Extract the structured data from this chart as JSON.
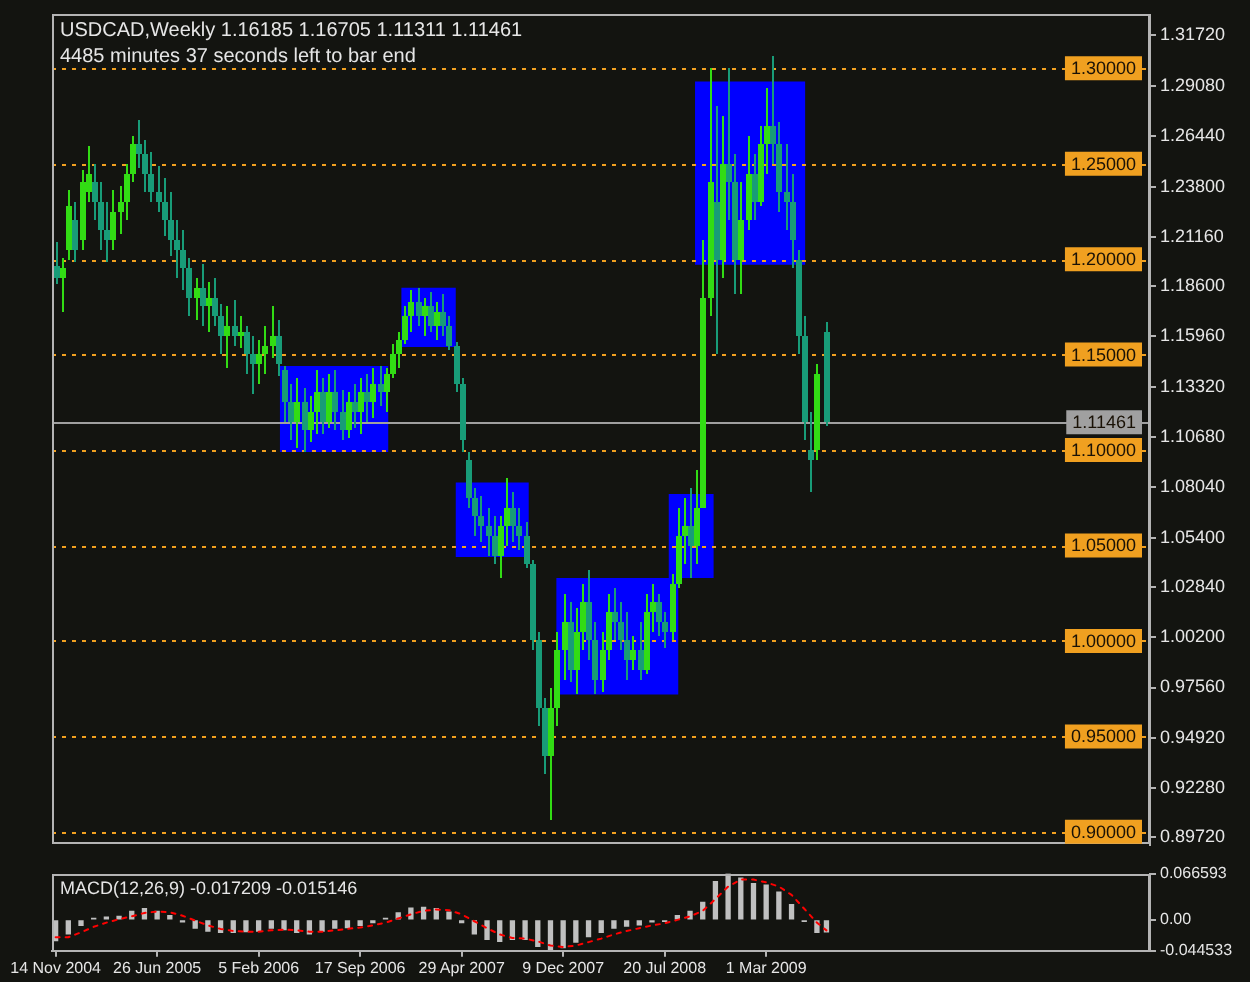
{
  "chart_data": [
    {
      "type": "candlestick",
      "title": "USDCAD,Weekly 1.16185 1.16705 1.11311 1.11461",
      "subtitle": "4485 minutes 37 seconds left to bar end",
      "xlim": [
        "2004-11-06",
        "2011-06-26"
      ],
      "ylim": [
        0.893,
        1.328
      ],
      "tick_labels": "y",
      "yticks": [
        {
          "value": 1.3172,
          "label": "1.31720"
        },
        {
          "value": 1.2908,
          "label": "1.29080"
        },
        {
          "value": 1.2644,
          "label": "1.26440"
        },
        {
          "value": 1.238,
          "label": "1.23800"
        },
        {
          "value": 1.2116,
          "label": "1.21160"
        },
        {
          "value": 1.186,
          "label": "1.18600"
        },
        {
          "value": 1.1596,
          "label": "1.15960"
        },
        {
          "value": 1.1332,
          "label": "1.13320"
        },
        {
          "value": 1.1068,
          "label": "1.10680"
        },
        {
          "value": 1.0804,
          "label": "1.08040"
        },
        {
          "value": 1.054,
          "label": "1.05400"
        },
        {
          "value": 1.0284,
          "label": "1.02840"
        },
        {
          "value": 1.002,
          "label": "1.00200"
        },
        {
          "value": 0.9756,
          "label": "0.97560"
        },
        {
          "value": 0.9492,
          "label": "0.94920"
        },
        {
          "value": 0.9228,
          "label": "0.92280"
        },
        {
          "value": 0.8972,
          "label": "0.89720"
        }
      ],
      "ref_lines": [
        {
          "axis": "y",
          "value": 1.3,
          "label": "1.30000",
          "color": "#f0a020",
          "line_style": "dotted"
        },
        {
          "axis": "y",
          "value": 1.25,
          "label": "1.25000",
          "color": "#f0a020",
          "line_style": "dotted"
        },
        {
          "axis": "y",
          "value": 1.2,
          "label": "1.20000",
          "color": "#f0a020",
          "line_style": "dotted"
        },
        {
          "axis": "y",
          "value": 1.15,
          "label": "1.15000",
          "color": "#f0a020",
          "line_style": "dotted"
        },
        {
          "axis": "y",
          "value": 1.1,
          "label": "1.10000",
          "color": "#f0a020",
          "line_style": "dotted"
        },
        {
          "axis": "y",
          "value": 1.05,
          "label": "1.05000",
          "color": "#f0a020",
          "line_style": "dotted"
        },
        {
          "axis": "y",
          "value": 1.0,
          "label": "1.00000",
          "color": "#f0a020",
          "line_style": "dotted"
        },
        {
          "axis": "y",
          "value": 0.95,
          "label": "0.95000",
          "color": "#f0a020",
          "line_style": "dotted"
        },
        {
          "axis": "y",
          "value": 0.9,
          "label": "0.90000",
          "color": "#f0a020",
          "line_style": "dotted"
        },
        {
          "axis": "y",
          "value": 1.11461,
          "label": "1.11461",
          "color": "#a0a0a0",
          "line_style": "solid"
        }
      ],
      "series": [
        {
          "type": "area",
          "x": [
            "2006-03-24",
            "2006-11-18"
          ],
          "values": [
            null,
            null
          ],
          "upper": [
            1.144,
            1.144
          ],
          "lower": [
            1.099,
            1.099
          ],
          "color": "#0000ff"
        },
        {
          "type": "area",
          "x": [
            "2006-12-17",
            "2007-04-16"
          ],
          "values": [
            null,
            null
          ],
          "upper": [
            1.185,
            1.185
          ],
          "lower": [
            1.154,
            1.154
          ],
          "color": "#0000ff"
        },
        {
          "type": "area",
          "x": [
            "2007-04-16",
            "2007-09-24"
          ],
          "values": [
            null,
            null
          ],
          "upper": [
            1.083,
            1.083
          ],
          "lower": [
            1.044,
            1.044
          ],
          "color": "#0000ff"
        },
        {
          "type": "area",
          "x": [
            "2007-11-24",
            "2008-08-19"
          ],
          "values": [
            null,
            null
          ],
          "upper": [
            1.033,
            1.033
          ],
          "lower": [
            0.972,
            0.972
          ],
          "color": "#0000ff"
        },
        {
          "type": "area",
          "x": [
            "2008-07-29",
            "2008-11-05"
          ],
          "values": [
            null,
            null
          ],
          "upper": [
            1.077,
            1.077
          ],
          "lower": [
            1.033,
            1.033
          ],
          "color": "#0000ff"
        },
        {
          "type": "area",
          "x": [
            "2008-09-25",
            "2009-05-26"
          ],
          "values": [
            null,
            null
          ],
          "upper": [
            1.293,
            1.293
          ],
          "lower": [
            1.197,
            1.197
          ],
          "color": "#0000ff"
        },
        {
          "x": [
            "2004-11-14",
            "2004-11-28",
            "2004-12-12",
            "2004-12-26",
            "2005-01-09",
            "2005-01-23",
            "2005-02-06",
            "2005-02-20",
            "2005-03-06",
            "2005-03-20",
            "2005-04-03",
            "2005-04-17",
            "2005-05-01",
            "2005-05-15",
            "2005-05-29",
            "2005-06-12",
            "2005-06-26",
            "2005-07-10",
            "2005-07-24",
            "2005-08-07",
            "2005-08-21",
            "2005-09-04",
            "2005-09-18",
            "2005-10-02",
            "2005-10-16",
            "2005-10-30",
            "2005-11-13",
            "2005-11-27",
            "2005-12-11",
            "2005-12-25",
            "2006-01-08",
            "2006-01-22",
            "2006-02-05",
            "2006-02-19",
            "2006-03-05",
            "2006-03-19",
            "2006-04-02",
            "2006-04-16",
            "2006-04-30",
            "2006-05-14",
            "2006-05-28",
            "2006-06-11",
            "2006-06-25",
            "2006-07-09",
            "2006-07-23",
            "2006-08-06",
            "2006-08-20",
            "2006-09-03",
            "2006-09-17",
            "2006-10-01",
            "2006-10-15",
            "2006-10-29",
            "2006-11-12",
            "2006-11-26",
            "2006-12-10",
            "2006-12-24",
            "2007-01-07",
            "2007-01-21",
            "2007-02-04",
            "2007-02-18",
            "2007-03-04",
            "2007-03-18",
            "2007-04-01",
            "2007-04-15",
            "2007-04-29",
            "2007-05-13",
            "2007-05-27",
            "2007-06-10",
            "2007-06-24",
            "2007-07-08",
            "2007-07-22",
            "2007-08-05",
            "2007-08-19",
            "2007-09-02",
            "2007-09-16",
            "2007-09-30",
            "2007-10-14",
            "2007-10-28",
            "2007-11-11",
            "2007-11-25",
            "2007-12-09",
            "2007-12-23",
            "2008-01-06",
            "2008-01-20",
            "2008-02-03",
            "2008-02-17",
            "2008-03-02",
            "2008-03-16",
            "2008-03-30",
            "2008-04-13",
            "2008-04-27",
            "2008-05-11",
            "2008-05-25",
            "2008-06-08",
            "2008-06-22",
            "2008-07-06",
            "2008-07-20",
            "2008-08-03",
            "2008-08-17",
            "2008-08-31",
            "2008-09-14",
            "2008-09-28",
            "2008-10-12",
            "2008-10-26",
            "2008-11-09",
            "2008-11-23",
            "2008-12-07",
            "2008-12-21",
            "2009-01-04",
            "2009-01-18",
            "2009-02-01",
            "2009-02-15",
            "2009-03-01",
            "2009-03-15",
            "2009-03-29",
            "2009-04-12",
            "2009-04-26",
            "2009-05-10",
            "2009-05-24",
            "2009-06-07",
            "2009-06-21",
            "2009-07-12"
          ],
          "ohlc": [
            [
              1.196,
              1.2085,
              1.1875,
              1.19
            ],
            [
              1.19,
              1.201,
              1.172,
              1.195
            ],
            [
              1.205,
              1.236,
              1.2,
              1.228
            ],
            [
              1.22,
              1.23,
              1.198,
              1.205
            ],
            [
              1.21,
              1.247,
              1.205,
              1.24
            ],
            [
              1.235,
              1.259,
              1.23,
              1.245
            ],
            [
              1.24,
              1.25,
              1.22,
              1.23
            ],
            [
              1.23,
              1.24,
              1.205,
              1.215
            ],
            [
              1.215,
              1.23,
              1.199,
              1.21
            ],
            [
              1.21,
              1.236,
              1.205,
              1.225
            ],
            [
              1.225,
              1.238,
              1.213,
              1.23
            ],
            [
              1.23,
              1.25,
              1.22,
              1.245
            ],
            [
              1.245,
              1.265,
              1.24,
              1.26
            ],
            [
              1.26,
              1.273,
              1.248,
              1.255
            ],
            [
              1.255,
              1.262,
              1.235,
              1.245
            ],
            [
              1.245,
              1.256,
              1.23,
              1.235
            ],
            [
              1.235,
              1.249,
              1.225,
              1.23
            ],
            [
              1.23,
              1.243,
              1.212,
              1.22
            ],
            [
              1.22,
              1.235,
              1.202,
              1.21
            ],
            [
              1.21,
              1.22,
              1.19,
              1.205
            ],
            [
              1.205,
              1.215,
              1.184,
              1.195
            ],
            [
              1.195,
              1.201,
              1.17,
              1.18
            ],
            [
              1.18,
              1.19,
              1.168,
              1.185
            ],
            [
              1.185,
              1.197,
              1.165,
              1.175
            ],
            [
              1.175,
              1.188,
              1.162,
              1.18
            ],
            [
              1.18,
              1.19,
              1.165,
              1.17
            ],
            [
              1.17,
              1.177,
              1.15,
              1.16
            ],
            [
              1.16,
              1.175,
              1.143,
              1.165
            ],
            [
              1.165,
              1.179,
              1.155,
              1.16
            ],
            [
              1.16,
              1.17,
              1.153,
              1.162
            ],
            [
              1.162,
              1.165,
              1.14,
              1.15
            ],
            [
              1.15,
              1.16,
              1.129,
              1.145
            ],
            [
              1.145,
              1.158,
              1.135,
              1.15
            ],
            [
              1.15,
              1.165,
              1.14,
              1.155
            ],
            [
              1.155,
              1.175,
              1.148,
              1.16
            ],
            [
              1.16,
              1.168,
              1.139,
              1.145
            ],
            [
              1.142,
              1.144,
              1.115,
              1.125
            ],
            [
              1.125,
              1.135,
              1.105,
              1.115
            ],
            [
              1.115,
              1.138,
              1.101,
              1.125
            ],
            [
              1.125,
              1.133,
              1.099,
              1.11
            ],
            [
              1.11,
              1.128,
              1.104,
              1.12
            ],
            [
              1.12,
              1.142,
              1.108,
              1.13
            ],
            [
              1.13,
              1.138,
              1.108,
              1.115
            ],
            [
              1.115,
              1.14,
              1.112,
              1.13
            ],
            [
              1.13,
              1.142,
              1.11,
              1.12
            ],
            [
              1.12,
              1.131,
              1.105,
              1.11
            ],
            [
              1.11,
              1.13,
              1.106,
              1.125
            ],
            [
              1.125,
              1.135,
              1.112,
              1.12
            ],
            [
              1.12,
              1.138,
              1.108,
              1.13
            ],
            [
              1.13,
              1.14,
              1.115,
              1.125
            ],
            [
              1.125,
              1.143,
              1.117,
              1.135
            ],
            [
              1.135,
              1.144,
              1.123,
              1.13
            ],
            [
              1.13,
              1.143,
              1.12,
              1.14
            ],
            [
              1.14,
              1.156,
              1.138,
              1.15
            ],
            [
              1.15,
              1.162,
              1.143,
              1.158
            ],
            [
              1.158,
              1.175,
              1.156,
              1.17
            ],
            [
              1.17,
              1.184,
              1.162,
              1.178
            ],
            [
              1.178,
              1.185,
              1.165,
              1.17
            ],
            [
              1.17,
              1.18,
              1.16,
              1.175
            ],
            [
              1.175,
              1.183,
              1.162,
              1.165
            ],
            [
              1.165,
              1.178,
              1.158,
              1.172
            ],
            [
              1.172,
              1.182,
              1.16,
              1.165
            ],
            [
              1.165,
              1.17,
              1.152,
              1.155
            ],
            [
              1.155,
              1.157,
              1.13,
              1.135
            ],
            [
              1.135,
              1.138,
              1.099,
              1.105
            ],
            [
              1.095,
              1.099,
              1.07,
              1.075
            ],
            [
              1.075,
              1.08,
              1.055,
              1.065
            ],
            [
              1.065,
              1.076,
              1.052,
              1.06
            ],
            [
              1.06,
              1.07,
              1.045,
              1.055
            ],
            [
              1.055,
              1.065,
              1.04,
              1.045
            ],
            [
              1.045,
              1.065,
              1.033,
              1.06
            ],
            [
              1.06,
              1.085,
              1.05,
              1.07
            ],
            [
              1.07,
              1.078,
              1.052,
              1.06
            ],
            [
              1.06,
              1.07,
              1.048,
              1.055
            ],
            [
              1.055,
              1.062,
              1.038,
              1.04
            ],
            [
              1.04,
              1.042,
              0.995,
              1.0
            ],
            [
              1.0,
              1.005,
              0.955,
              0.965
            ],
            [
              0.965,
              0.97,
              0.93,
              0.94
            ],
            [
              0.94,
              0.975,
              0.906,
              0.965
            ],
            [
              0.965,
              1.005,
              0.955,
              0.995
            ],
            [
              0.995,
              1.025,
              0.98,
              1.01
            ],
            [
              1.01,
              1.02,
              0.978,
              0.985
            ],
            [
              0.985,
              1.017,
              0.972,
              1.005
            ],
            [
              1.005,
              1.03,
              0.995,
              1.02
            ],
            [
              1.02,
              1.037,
              0.99,
              1.0
            ],
            [
              1.0,
              1.01,
              0.972,
              0.98
            ],
            [
              0.98,
              1.005,
              0.973,
              0.995
            ],
            [
              0.995,
              1.025,
              0.99,
              1.015
            ],
            [
              1.015,
              1.028,
              1.0,
              1.01
            ],
            [
              1.01,
              1.02,
              0.995,
              1.0
            ],
            [
              1.0,
              1.015,
              0.98,
              0.99
            ],
            [
              0.99,
              1.003,
              0.985,
              0.995
            ],
            [
              0.995,
              1.01,
              0.98,
              0.985
            ],
            [
              0.985,
              1.025,
              0.983,
              1.015
            ],
            [
              1.015,
              1.03,
              1.005,
              1.02
            ],
            [
              1.02,
              1.025,
              1.003,
              1.01
            ],
            [
              1.01,
              1.015,
              0.996,
              1.005
            ],
            [
              1.005,
              1.035,
              1.0,
              1.03
            ],
            [
              1.03,
              1.07,
              1.028,
              1.055
            ],
            [
              1.055,
              1.075,
              1.04,
              1.06
            ],
            [
              1.06,
              1.08,
              1.033,
              1.05
            ],
            [
              1.05,
              1.09,
              1.04,
              1.07
            ],
            [
              1.07,
              1.21,
              1.07,
              1.18
            ],
            [
              1.18,
              1.3,
              1.17,
              1.24
            ],
            [
              1.23,
              1.28,
              1.15,
              1.2
            ],
            [
              1.2,
              1.275,
              1.19,
              1.25
            ],
            [
              1.25,
              1.3,
              1.22,
              1.24
            ],
            [
              1.24,
              1.255,
              1.182,
              1.2
            ],
            [
              1.2,
              1.24,
              1.182,
              1.22
            ],
            [
              1.22,
              1.265,
              1.215,
              1.245
            ],
            [
              1.245,
              1.255,
              1.22,
              1.23
            ],
            [
              1.23,
              1.27,
              1.228,
              1.26
            ],
            [
              1.26,
              1.29,
              1.245,
              1.27
            ],
            [
              1.27,
              1.3065,
              1.25,
              1.26
            ],
            [
              1.26,
              1.272,
              1.225,
              1.235
            ],
            [
              1.235,
              1.26,
              1.215,
              1.23
            ],
            [
              1.23,
              1.245,
              1.195,
              1.21
            ],
            [
              1.2,
              1.205,
              1.15,
              1.16
            ],
            [
              1.16,
              1.17,
              1.105,
              1.115
            ],
            [
              1.1,
              1.12,
              1.078,
              1.095
            ],
            [
              1.1,
              1.145,
              1.095,
              1.14
            ],
            [
              1.16185,
              1.16705,
              1.11311,
              1.11461
            ]
          ],
          "colors": [
            "#189c78",
            "#32dc14",
            "#32dc14",
            "#189c78",
            "#32dc14",
            "#32dc14",
            "#189c78",
            "#189c78",
            "#189c78",
            "#32dc14",
            "#32dc14",
            "#32dc14",
            "#32dc14",
            "#189c78",
            "#189c78",
            "#189c78",
            "#189c78",
            "#189c78",
            "#189c78",
            "#189c78",
            "#189c78",
            "#189c78",
            "#32dc14",
            "#189c78",
            "#32dc14",
            "#189c78",
            "#189c78",
            "#32dc14",
            "#189c78",
            "#32dc14",
            "#189c78",
            "#189c78",
            "#32dc14",
            "#32dc14",
            "#32dc14",
            "#189c78",
            "#189c78",
            "#189c78",
            "#32dc14",
            "#189c78",
            "#32dc14",
            "#32dc14",
            "#189c78",
            "#32dc14",
            "#189c78",
            "#189c78",
            "#32dc14",
            "#189c78",
            "#32dc14",
            "#189c78",
            "#32dc14",
            "#189c78",
            "#32dc14",
            "#32dc14",
            "#32dc14",
            "#32dc14",
            "#32dc14",
            "#189c78",
            "#32dc14",
            "#189c78",
            "#32dc14",
            "#189c78",
            "#189c78",
            "#189c78",
            "#189c78",
            "#189c78",
            "#189c78",
            "#189c78",
            "#189c78",
            "#189c78",
            "#32dc14",
            "#32dc14",
            "#189c78",
            "#189c78",
            "#189c78",
            "#189c78",
            "#189c78",
            "#189c78",
            "#32dc14",
            "#32dc14",
            "#32dc14",
            "#189c78",
            "#32dc14",
            "#32dc14",
            "#189c78",
            "#189c78",
            "#32dc14",
            "#32dc14",
            "#189c78",
            "#189c78",
            "#189c78",
            "#32dc14",
            "#189c78",
            "#32dc14",
            "#32dc14",
            "#189c78",
            "#189c78",
            "#32dc14",
            "#32dc14",
            "#32dc14",
            "#189c78",
            "#32dc14",
            "#32dc14",
            "#32dc14",
            "#189c78",
            "#32dc14",
            "#189c78",
            "#189c78",
            "#32dc14",
            "#32dc14",
            "#189c78",
            "#32dc14",
            "#32dc14",
            "#189c78",
            "#189c78",
            "#189c78",
            "#189c78",
            "#189c78",
            "#189c78",
            "#189c78",
            "#32dc14",
            "#189c78"
          ]
        }
      ]
    },
    {
      "type": "bar",
      "title": "MACD(12,26,9) -0.017209 -0.015146",
      "xlim": [
        "2004-11-06",
        "2011-06-26"
      ],
      "ylim": [
        -0.044533,
        0.066593
      ],
      "xticks": [
        {
          "value": "2004-11-14",
          "label": "14 Nov 2004"
        },
        {
          "value": "2005-06-26",
          "label": "26 Jun 2005"
        },
        {
          "value": "2006-02-05",
          "label": "5 Feb 2006"
        },
        {
          "value": "2006-09-17",
          "label": "17 Sep 2006"
        },
        {
          "value": "2007-04-29",
          "label": "29 Apr 2007"
        },
        {
          "value": "2007-12-09",
          "label": "9 Dec 2007"
        },
        {
          "value": "2008-07-20",
          "label": "20 Jul 2008"
        },
        {
          "value": "2009-03-01",
          "label": "1 Mar 2009"
        }
      ],
      "yticks": [
        0.066593,
        {
          "value": 0,
          "label": "0.00"
        },
        -0.044533
      ],
      "x": [
        "2004-11-14",
        "2004-12-12",
        "2005-01-09",
        "2005-02-06",
        "2005-03-06",
        "2005-04-03",
        "2005-05-01",
        "2005-05-29",
        "2005-06-26",
        "2005-07-24",
        "2005-08-21",
        "2005-09-18",
        "2005-10-16",
        "2005-11-13",
        "2005-12-11",
        "2006-01-08",
        "2006-02-05",
        "2006-03-05",
        "2006-04-02",
        "2006-04-30",
        "2006-05-28",
        "2006-06-25",
        "2006-07-23",
        "2006-08-20",
        "2006-09-17",
        "2006-10-15",
        "2006-11-12",
        "2006-12-10",
        "2007-01-07",
        "2007-02-04",
        "2007-03-04",
        "2007-04-01",
        "2007-04-29",
        "2007-05-27",
        "2007-06-24",
        "2007-07-22",
        "2007-08-19",
        "2007-09-16",
        "2007-10-14",
        "2007-11-11",
        "2007-12-09",
        "2008-01-06",
        "2008-02-03",
        "2008-03-02",
        "2008-03-30",
        "2008-04-27",
        "2008-05-25",
        "2008-06-22",
        "2008-07-20",
        "2008-08-17",
        "2008-09-14",
        "2008-10-12",
        "2008-11-09",
        "2008-12-07",
        "2009-01-04",
        "2009-02-01",
        "2009-03-01",
        "2009-03-29",
        "2009-04-26",
        "2009-05-24",
        "2009-06-21",
        "2009-07-12"
      ],
      "series": [
        {
          "color": "#c0c0c0",
          "values": [
            -0.03,
            -0.02,
            -0.008,
            0.002,
            0.004,
            0.005,
            0.012,
            0.016,
            0.012,
            0.006,
            -0.003,
            -0.012,
            -0.016,
            -0.018,
            -0.018,
            -0.017,
            -0.016,
            -0.012,
            -0.014,
            -0.018,
            -0.02,
            -0.016,
            -0.012,
            -0.011,
            -0.008,
            -0.004,
            0.002,
            0.01,
            0.017,
            0.018,
            0.016,
            0.011,
            -0.004,
            -0.02,
            -0.028,
            -0.031,
            -0.028,
            -0.028,
            -0.038,
            -0.044,
            -0.04,
            -0.032,
            -0.024,
            -0.018,
            -0.012,
            -0.009,
            -0.007,
            -0.003,
            -0.002,
            0.006,
            0.012,
            0.025,
            0.055,
            0.066,
            0.06,
            0.052,
            0.05,
            0.04,
            0.022,
            -0.002,
            -0.018,
            -0.017209
          ]
        },
        {
          "type": "line",
          "color": "#ff0000",
          "line_style": "dotted",
          "values": [
            -0.025,
            -0.025,
            -0.018,
            -0.01,
            -0.004,
            0.001,
            0.005,
            0.01,
            0.012,
            0.011,
            0.006,
            -0.001,
            -0.008,
            -0.013,
            -0.016,
            -0.017,
            -0.017,
            -0.015,
            -0.014,
            -0.015,
            -0.017,
            -0.017,
            -0.015,
            -0.013,
            -0.011,
            -0.008,
            -0.004,
            0.002,
            0.008,
            0.013,
            0.015,
            0.014,
            0.008,
            -0.002,
            -0.012,
            -0.021,
            -0.026,
            -0.027,
            -0.031,
            -0.037,
            -0.039,
            -0.037,
            -0.032,
            -0.027,
            -0.021,
            -0.016,
            -0.012,
            -0.008,
            -0.005,
            0.0,
            0.005,
            0.013,
            0.03,
            0.048,
            0.058,
            0.058,
            0.054,
            0.048,
            0.036,
            0.016,
            -0.004,
            -0.015146
          ]
        }
      ]
    }
  ]
}
